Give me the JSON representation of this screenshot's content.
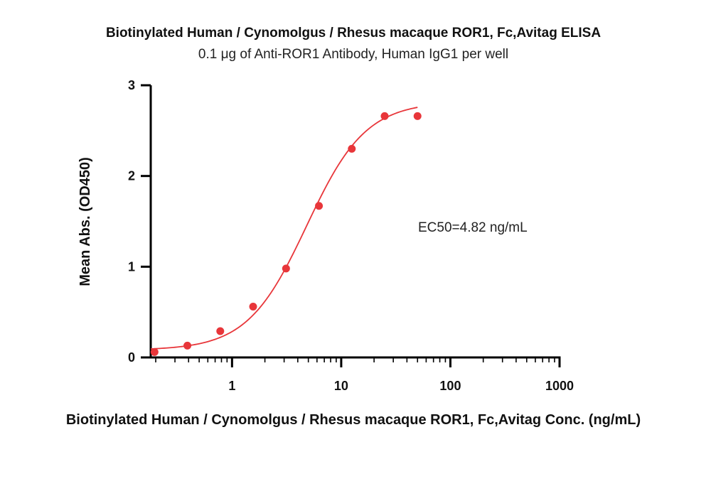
{
  "chart_data": {
    "type": "scatter",
    "title": "Biotinylated Human / Cynomolgus / Rhesus macaque ROR1, Fc,Avitag ELISA",
    "subtitle": "0.1 μg of Anti-ROR1 Antibody, Human IgG1 per well",
    "xlabel": "Biotinylated Human / Cynomolgus / Rhesus macaque ROR1, Fc,Avitag Conc. (ng/mL)",
    "ylabel": "Mean Abs. (OD450)",
    "x_scale": "log",
    "xlim": [
      0.18,
      1000
    ],
    "ylim": [
      0,
      3
    ],
    "x_ticks": [
      {
        "value": 1,
        "label": "1"
      },
      {
        "value": 10,
        "label": "10"
      },
      {
        "value": 100,
        "label": "100"
      },
      {
        "value": 1000,
        "label": "1000"
      }
    ],
    "y_ticks": [
      {
        "value": 0,
        "label": "0"
      },
      {
        "value": 1,
        "label": "1"
      },
      {
        "value": 2,
        "label": "2"
      },
      {
        "value": 3,
        "label": "3"
      }
    ],
    "series": [
      {
        "x": [
          0.195,
          0.39,
          0.78,
          1.56,
          3.125,
          6.25,
          12.5,
          25,
          50
        ],
        "y": [
          0.06,
          0.13,
          0.29,
          0.56,
          0.98,
          1.67,
          2.3,
          2.66,
          2.66
        ],
        "color": "#e8363a"
      }
    ],
    "fit": {
      "model": "4PL",
      "bottom": 0.08,
      "top": 2.82,
      "ec50": 4.82,
      "hill": 1.6,
      "color": "#e8363a"
    },
    "annotation": "EC50=4.82 ng/mL",
    "grid": false,
    "legend": "none"
  }
}
